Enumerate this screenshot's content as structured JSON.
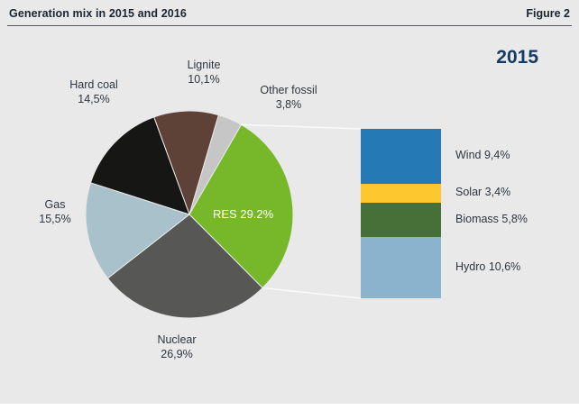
{
  "header": {
    "title": "Generation mix in 2015 and 2016",
    "figure_label": "Figure 2"
  },
  "year_label": "2015",
  "colors": {
    "background": "#e9e9e9",
    "text_dark": "#2e3640",
    "year_navy": "#163a63"
  },
  "chart_data": {
    "type": "pie",
    "title": "Generation mix in 2015 and 2016",
    "year": "2015",
    "start_angle_deg": -20,
    "slices": [
      {
        "label": "Lignite",
        "value": 10.1,
        "pct": "10,1%",
        "color": "#5e4238"
      },
      {
        "label": "Other fossil",
        "value": 3.8,
        "pct": "3,8%",
        "color": "#c6c6c6"
      },
      {
        "label": "RES",
        "value": 29.2,
        "pct": "29.2%",
        "display": "RES 29.2%",
        "color": "#76b82a"
      },
      {
        "label": "Nuclear",
        "value": 26.9,
        "pct": "26,9%",
        "color": "#575756"
      },
      {
        "label": "Gas",
        "value": 15.5,
        "pct": "15,5%",
        "color": "#a9c1ca"
      },
      {
        "label": "Hard coal",
        "value": 14.5,
        "pct": "14,5%",
        "color": "#161615"
      }
    ],
    "res_breakdown": {
      "type": "stacked-bar",
      "segments": [
        {
          "label": "Wind",
          "value": 9.4,
          "display": "Wind 9,4%",
          "color": "#2579b5"
        },
        {
          "label": "Solar",
          "value": 3.4,
          "display": "Solar 3,4%",
          "color": "#fdc82f"
        },
        {
          "label": "Biomass",
          "value": 5.8,
          "display": "Biomass 5,8%",
          "color": "#477038"
        },
        {
          "label": "Hydro",
          "value": 10.6,
          "display": "Hydro 10,6%",
          "color": "#8cb3cd"
        }
      ]
    }
  }
}
